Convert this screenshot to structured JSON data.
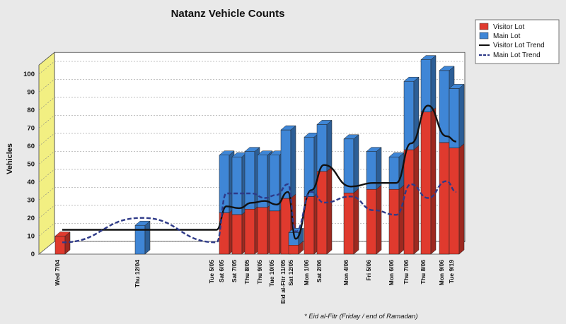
{
  "chart_data": {
    "type": "bar",
    "title": "Natanz Vehicle Counts",
    "ylabel": "Vehicles",
    "xlabel": "",
    "ylim": [
      0,
      105
    ],
    "yticks": [
      0,
      10,
      20,
      30,
      40,
      50,
      60,
      70,
      80,
      90,
      100
    ],
    "grid": true,
    "stacked": true,
    "legend_position": "top-right",
    "note": "* Eid al-Fitr (Friday / end of Ramadan)",
    "categories": [
      "Wed 7/04",
      "Thu 12/04",
      "Tue 5/05",
      "Sat 6/05",
      "Sat 7/05",
      "Thu 8/05",
      "Thu 9/05",
      "Tue 10/05",
      "Eid al-Fitr 11/05",
      "Sat 12/05",
      "Mon 1/06",
      "Sat 2/06",
      "Mon 4/06",
      "Fri 5/06",
      "Mon 6/06",
      "Thu 7/06",
      "Thu 8/06",
      "Mon 9/06",
      "Tue 9/19"
    ],
    "series": [
      {
        "name": "Visitor Lot",
        "color": "#e03a2e",
        "values": [
          10,
          0,
          0,
          23,
          22,
          25,
          26,
          24,
          31,
          5,
          32,
          46,
          34,
          36,
          36,
          58,
          79,
          62,
          59
        ]
      },
      {
        "name": "Main Lot",
        "color": "#3f86d6",
        "values": [
          0,
          16,
          0,
          32,
          32,
          32,
          29,
          31,
          38,
          7,
          33,
          26,
          30,
          21,
          18,
          38,
          29,
          40,
          33
        ]
      }
    ],
    "trends": [
      {
        "name": "Visitor Lot Trend",
        "color": "#111111",
        "style": "solid"
      },
      {
        "name": "Main Lot Trend",
        "color": "#2e3a88",
        "style": "dashed"
      }
    ]
  }
}
